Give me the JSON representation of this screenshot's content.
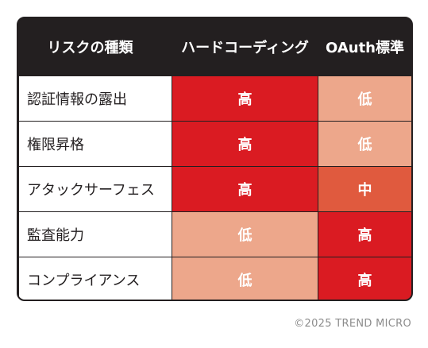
{
  "table": {
    "headers": [
      "リスクの種類",
      "ハードコーディング",
      "OAuth標準"
    ],
    "rows": [
      {
        "risk": "認証情報の露出",
        "hardcoding": "高",
        "oauth": "低"
      },
      {
        "risk": "権限昇格",
        "hardcoding": "高",
        "oauth": "低"
      },
      {
        "risk": "アタックサーフェス",
        "hardcoding": "高",
        "oauth": "中"
      },
      {
        "risk": "監査能力",
        "hardcoding": "低",
        "oauth": "高"
      },
      {
        "risk": "コンプライアンス",
        "hardcoding": "低",
        "oauth": "高"
      }
    ]
  },
  "level_colors": {
    "高": "#da1b22",
    "中": "#e05a3e",
    "低": "#eda78b"
  },
  "copyright": "©2025 TREND MICRO"
}
